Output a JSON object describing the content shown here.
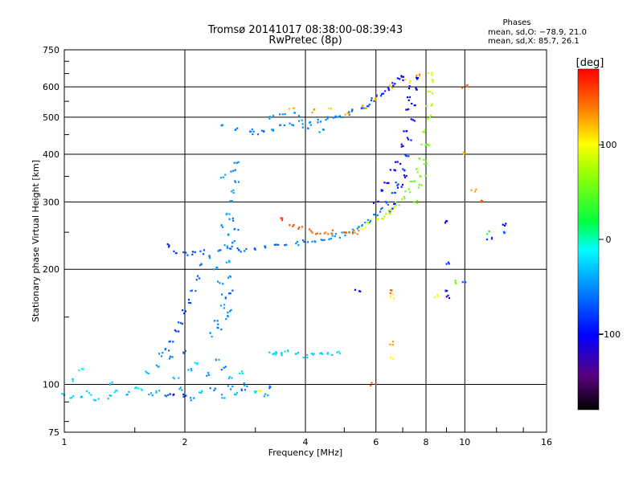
{
  "chart_data": {
    "type": "scatter",
    "title": "Tromsø 20141017 08:38:00-08:39:43",
    "subtitle": "RwPretec (8p)",
    "xlabel": "Frequency [MHz]",
    "ylabel": "Stationary phase Virtual Height [km]",
    "xscale": "log",
    "yscale": "log",
    "xlim": [
      1,
      16
    ],
    "ylim": [
      75,
      750
    ],
    "x_ticks": [
      "1",
      "2",
      "4",
      "6",
      "8",
      "10",
      "16"
    ],
    "y_ticks": [
      "75",
      "100",
      "200",
      "300",
      "400",
      "500",
      "600",
      "750"
    ],
    "grid": true,
    "legend": {
      "heading": "Phases",
      "line1": "mean, sd,O: −78.9, 21.0",
      "line2": "mean, sd,X:  85.7, 26.1"
    },
    "colorbar": {
      "label": "[deg]",
      "range": [
        -180,
        180
      ],
      "ticks": [
        "100",
        "0",
        "−100"
      ]
    },
    "point_series": [
      {
        "comment": "O-mode E/F1 trace low band",
        "points": [
          [
            1.0,
            94,
            -30
          ],
          [
            1.05,
            93,
            -25
          ],
          [
            1.1,
            92,
            -30
          ],
          [
            1.15,
            95,
            -20
          ],
          [
            1.2,
            91,
            -25
          ],
          [
            1.3,
            93,
            -30
          ],
          [
            1.35,
            96,
            -20
          ],
          [
            1.45,
            95,
            -35
          ],
          [
            1.55,
            97,
            -20
          ],
          [
            1.65,
            94,
            -40
          ],
          [
            1.7,
            96,
            -30
          ],
          [
            1.8,
            93,
            -60
          ],
          [
            1.85,
            95,
            -100
          ],
          [
            1.95,
            97,
            -40
          ],
          [
            2.0,
            94,
            -80
          ],
          [
            2.1,
            92,
            -50
          ],
          [
            2.2,
            96,
            -30
          ],
          [
            2.35,
            97,
            -60
          ],
          [
            2.5,
            93,
            -40
          ],
          [
            2.6,
            98,
            -50
          ],
          [
            2.7,
            94,
            -30
          ],
          [
            2.8,
            96,
            -60
          ],
          [
            3.0,
            95,
            -20
          ],
          [
            3.1,
            97,
            100
          ],
          [
            3.2,
            94,
            -40
          ],
          [
            3.3,
            98,
            -60
          ]
        ]
      },
      {
        "comment": "low scatter cloud",
        "points": [
          [
            1.05,
            103,
            -20
          ],
          [
            1.1,
            110,
            -10
          ],
          [
            1.3,
            101,
            -30
          ],
          [
            1.5,
            99,
            -20
          ],
          [
            1.6,
            107,
            -30
          ],
          [
            1.7,
            112,
            -40
          ],
          [
            1.75,
            120,
            -50
          ],
          [
            1.85,
            117,
            -60
          ],
          [
            1.9,
            104,
            -30
          ],
          [
            2.0,
            122,
            -70
          ],
          [
            2.05,
            109,
            -40
          ],
          [
            2.15,
            113,
            -20
          ],
          [
            2.3,
            106,
            -50
          ],
          [
            2.4,
            115,
            -40
          ],
          [
            2.5,
            110,
            -60
          ],
          [
            2.6,
            104,
            -30
          ],
          [
            2.75,
            108,
            -20
          ],
          [
            2.85,
            100,
            -50
          ]
        ]
      },
      {
        "comment": "F1 vertical cusp ~2.5 MHz",
        "points": [
          [
            1.8,
            123,
            -60
          ],
          [
            1.85,
            130,
            -70
          ],
          [
            1.9,
            138,
            -80
          ],
          [
            1.95,
            145,
            -70
          ],
          [
            2.0,
            155,
            -90
          ],
          [
            2.05,
            165,
            -80
          ],
          [
            2.1,
            175,
            -60
          ],
          [
            2.15,
            190,
            -70
          ],
          [
            2.2,
            205,
            -60
          ],
          [
            2.3,
            215,
            -50
          ],
          [
            2.4,
            200,
            -40
          ],
          [
            2.45,
            185,
            -50
          ],
          [
            2.5,
            170,
            -60
          ],
          [
            2.5,
            160,
            -40
          ],
          [
            2.55,
            150,
            -50
          ],
          [
            2.45,
            140,
            -60
          ],
          [
            2.55,
            230,
            -50
          ],
          [
            2.6,
            245,
            -40
          ],
          [
            2.5,
            260,
            -50
          ],
          [
            2.55,
            280,
            -40
          ],
          [
            2.6,
            300,
            -50
          ],
          [
            2.65,
            320,
            -40
          ],
          [
            2.7,
            340,
            -50
          ],
          [
            2.65,
            360,
            -60
          ],
          [
            2.7,
            380,
            -50
          ],
          [
            2.5,
            350,
            -40
          ],
          [
            2.6,
            270,
            -60
          ],
          [
            2.55,
            210,
            -40
          ],
          [
            2.45,
            225,
            -60
          ],
          [
            2.6,
            190,
            -50
          ],
          [
            2.62,
            175,
            -70
          ],
          [
            2.58,
            155,
            -50
          ],
          [
            2.4,
            145,
            -60
          ],
          [
            2.35,
            135,
            -40
          ],
          [
            2.65,
            235,
            -50
          ],
          [
            2.7,
            255,
            -60
          ]
        ]
      },
      {
        "comment": "F1 low branch near 220 km",
        "points": [
          [
            1.8,
            230,
            -90
          ],
          [
            1.9,
            222,
            -80
          ],
          [
            2.0,
            220,
            -70
          ],
          [
            2.1,
            221,
            -80
          ],
          [
            2.2,
            222,
            -70
          ]
        ]
      },
      {
        "comment": "F2 O-mode lower trace",
        "points": [
          [
            2.6,
            228,
            -60
          ],
          [
            2.7,
            226,
            -70
          ],
          [
            2.8,
            224,
            -60
          ],
          [
            3.0,
            225,
            -70
          ],
          [
            3.2,
            228,
            -60
          ],
          [
            3.4,
            230,
            -70
          ],
          [
            3.6,
            232,
            -60
          ],
          [
            3.8,
            234,
            -50
          ],
          [
            4.0,
            236,
            -60
          ],
          [
            4.2,
            238,
            -50
          ],
          [
            4.4,
            240,
            -55
          ],
          [
            4.6,
            242,
            -50
          ],
          [
            4.8,
            245,
            -45
          ],
          [
            5.0,
            248,
            -50
          ],
          [
            5.2,
            252,
            -45
          ],
          [
            5.4,
            256,
            -50
          ],
          [
            5.6,
            262,
            -45
          ],
          [
            5.8,
            268,
            -50
          ],
          [
            6.0,
            276,
            -55
          ],
          [
            6.2,
            286,
            -60
          ],
          [
            6.4,
            298,
            -65
          ],
          [
            6.6,
            314,
            -70
          ],
          [
            6.8,
            335,
            -75
          ],
          [
            7.0,
            365,
            -80
          ],
          [
            7.2,
            400,
            -85
          ],
          [
            7.3,
            440,
            -90
          ],
          [
            7.4,
            490,
            -95
          ],
          [
            7.45,
            540,
            -100
          ],
          [
            7.5,
            590,
            -100
          ],
          [
            7.55,
            630,
            -105
          ]
        ]
      },
      {
        "comment": "O-mode cusp cloud",
        "points": [
          [
            6.0,
            300,
            -90
          ],
          [
            6.2,
            320,
            -95
          ],
          [
            6.4,
            340,
            -100
          ],
          [
            6.6,
            360,
            -100
          ],
          [
            6.8,
            380,
            -105
          ],
          [
            7.0,
            420,
            -110
          ],
          [
            7.1,
            460,
            -100
          ],
          [
            7.2,
            520,
            -110
          ],
          [
            7.3,
            560,
            -105
          ],
          [
            6.7,
            300,
            -95
          ],
          [
            6.9,
            330,
            -100
          ],
          [
            7.05,
            350,
            -105
          ],
          [
            7.35,
            600,
            -110
          ],
          [
            6.5,
            285,
            -95
          ]
        ]
      },
      {
        "comment": "X-mode red/orange trace",
        "points": [
          [
            3.5,
            270,
            160
          ],
          [
            3.7,
            262,
            155
          ],
          [
            3.9,
            256,
            150
          ],
          [
            4.1,
            252,
            150
          ],
          [
            4.3,
            250,
            145
          ],
          [
            4.5,
            248,
            140
          ],
          [
            4.7,
            250,
            145
          ],
          [
            5.0,
            252,
            150
          ],
          [
            5.2,
            250,
            145
          ],
          [
            5.4,
            250,
            135
          ]
        ]
      },
      {
        "comment": "X-mode yellow-green trace",
        "points": [
          [
            5.6,
            258,
            100
          ],
          [
            5.8,
            264,
            90
          ],
          [
            6.0,
            268,
            85
          ],
          [
            6.2,
            274,
            80
          ],
          [
            6.4,
            280,
            75
          ],
          [
            6.6,
            288,
            70
          ],
          [
            6.8,
            296,
            65
          ],
          [
            7.0,
            308,
            60
          ],
          [
            7.2,
            322,
            55
          ],
          [
            7.4,
            340,
            50
          ],
          [
            7.6,
            362,
            60
          ],
          [
            7.8,
            390,
            55
          ],
          [
            7.9,
            420,
            60
          ],
          [
            8.0,
            460,
            65
          ],
          [
            8.1,
            500,
            70
          ],
          [
            8.15,
            540,
            75
          ],
          [
            8.2,
            580,
            80
          ],
          [
            8.25,
            620,
            85
          ],
          [
            8.2,
            650,
            90
          ],
          [
            7.5,
            300,
            60
          ],
          [
            7.7,
            330,
            55
          ],
          [
            8.0,
            380,
            50
          ],
          [
            8.05,
            420,
            55
          ],
          [
            7.85,
            350,
            60
          ]
        ]
      },
      {
        "comment": "F2 upper branch blue",
        "points": [
          [
            2.5,
            472,
            -50
          ],
          [
            2.7,
            468,
            -60
          ],
          [
            2.9,
            462,
            -55
          ],
          [
            3.1,
            458,
            -60
          ],
          [
            3.3,
            464,
            -50
          ],
          [
            3.5,
            472,
            -55
          ],
          [
            3.7,
            478,
            -50
          ],
          [
            3.9,
            485,
            -45
          ],
          [
            4.1,
            482,
            -50
          ],
          [
            4.3,
            488,
            -55
          ],
          [
            4.5,
            495,
            -50
          ],
          [
            4.7,
            500,
            -55
          ],
          [
            4.9,
            505,
            -50
          ],
          [
            5.1,
            510,
            -55
          ],
          [
            5.3,
            520,
            -60
          ],
          [
            5.5,
            530,
            -65
          ],
          [
            5.7,
            540,
            -70
          ],
          [
            5.9,
            555,
            -75
          ],
          [
            6.1,
            568,
            -80
          ],
          [
            6.3,
            580,
            -85
          ],
          [
            6.5,
            595,
            -90
          ],
          [
            6.7,
            610,
            -95
          ],
          [
            6.9,
            625,
            -100
          ],
          [
            7.0,
            640,
            -100
          ],
          [
            3.3,
            500,
            -40
          ],
          [
            3.5,
            505,
            -50
          ],
          [
            3.8,
            510,
            -45
          ],
          [
            4.0,
            470,
            -55
          ],
          [
            4.4,
            460,
            -50
          ],
          [
            3.0,
            455,
            -60
          ]
        ]
      },
      {
        "comment": "scattered X-mode points",
        "points": [
          [
            3.7,
            522,
            120
          ],
          [
            4.2,
            520,
            130
          ],
          [
            4.6,
            525,
            110
          ],
          [
            5.1,
            510,
            125
          ],
          [
            5.6,
            530,
            135
          ],
          [
            6.0,
            560,
            130
          ],
          [
            6.6,
            600,
            115
          ],
          [
            7.2,
            620,
            110
          ],
          [
            7.6,
            640,
            130
          ]
        ]
      },
      {
        "comment": "Es-like trace ~120 km",
        "points": [
          [
            3.3,
            120,
            -30
          ],
          [
            3.4,
            121,
            -25
          ],
          [
            3.5,
            120,
            -30
          ],
          [
            3.6,
            122,
            -20
          ],
          [
            3.8,
            120,
            -30
          ],
          [
            4.0,
            119,
            -25
          ],
          [
            4.2,
            120,
            -30
          ],
          [
            4.4,
            121,
            -25
          ],
          [
            4.6,
            120,
            -30
          ],
          [
            4.8,
            121,
            -20
          ]
        ]
      },
      {
        "comment": "isolated points",
        "points": [
          [
            9.0,
            265,
            -110
          ],
          [
            9.0,
            175,
            -90
          ],
          [
            9.0,
            170,
            -120
          ],
          [
            10.0,
            185,
            -70
          ],
          [
            11.5,
            250,
            30
          ],
          [
            11.5,
            240,
            -80
          ],
          [
            12.5,
            262,
            -100
          ],
          [
            12.5,
            248,
            -70
          ],
          [
            6.6,
            175,
            150
          ],
          [
            6.6,
            170,
            100
          ],
          [
            6.6,
            128,
            130
          ],
          [
            6.6,
            118,
            100
          ],
          [
            8.5,
            170,
            100
          ],
          [
            9.5,
            185,
            60
          ],
          [
            10.5,
            320,
            130
          ],
          [
            11.0,
            300,
            150
          ],
          [
            10.0,
            400,
            120
          ],
          [
            10.0,
            600,
            150
          ],
          [
            5.9,
            100,
            150
          ],
          [
            5.4,
            175,
            -100
          ],
          [
            9.0,
            207,
            -80
          ]
        ]
      }
    ]
  }
}
